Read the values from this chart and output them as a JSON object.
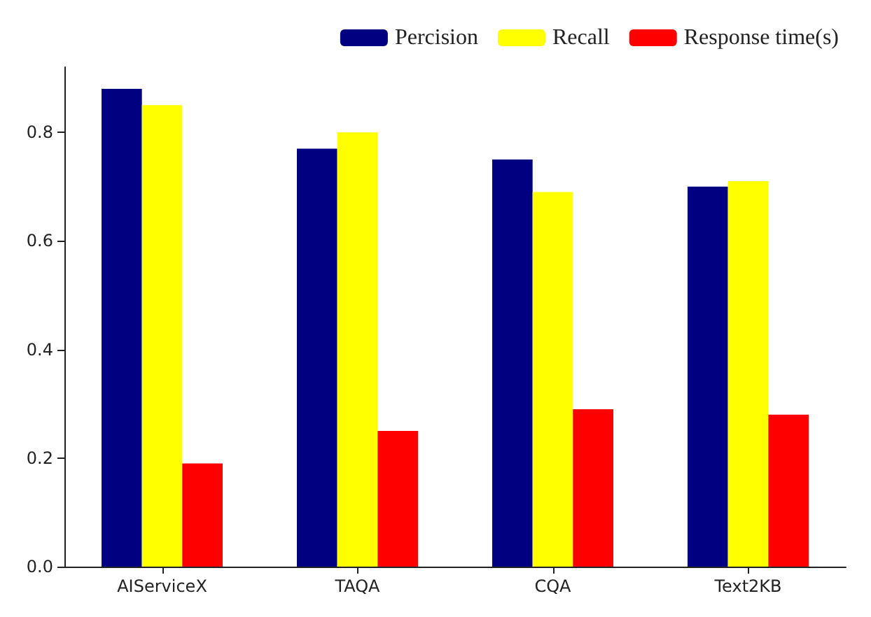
{
  "chart_data": {
    "type": "bar",
    "categories": [
      "AIServiceX",
      "TAQA",
      "CQA",
      "Text2KB"
    ],
    "series": [
      {
        "name": "Percision",
        "color": "#000080",
        "values": [
          0.88,
          0.77,
          0.75,
          0.7
        ]
      },
      {
        "name": "Recall",
        "color": "#ffff00",
        "values": [
          0.85,
          0.8,
          0.69,
          0.71
        ]
      },
      {
        "name": "Response time(s)",
        "color": "#ff0000",
        "values": [
          0.19,
          0.25,
          0.29,
          0.28
        ]
      }
    ],
    "ylim": [
      0,
      0.92
    ],
    "yticks": [
      {
        "value": 0,
        "label": "0.0"
      },
      {
        "value": 0.2,
        "label": "0.2"
      },
      {
        "value": 0.4,
        "label": "0.4"
      },
      {
        "value": 0.6,
        "label": "0.6"
      },
      {
        "value": 0.8,
        "label": "0.8"
      }
    ],
    "grid": false,
    "legend": "top right"
  }
}
